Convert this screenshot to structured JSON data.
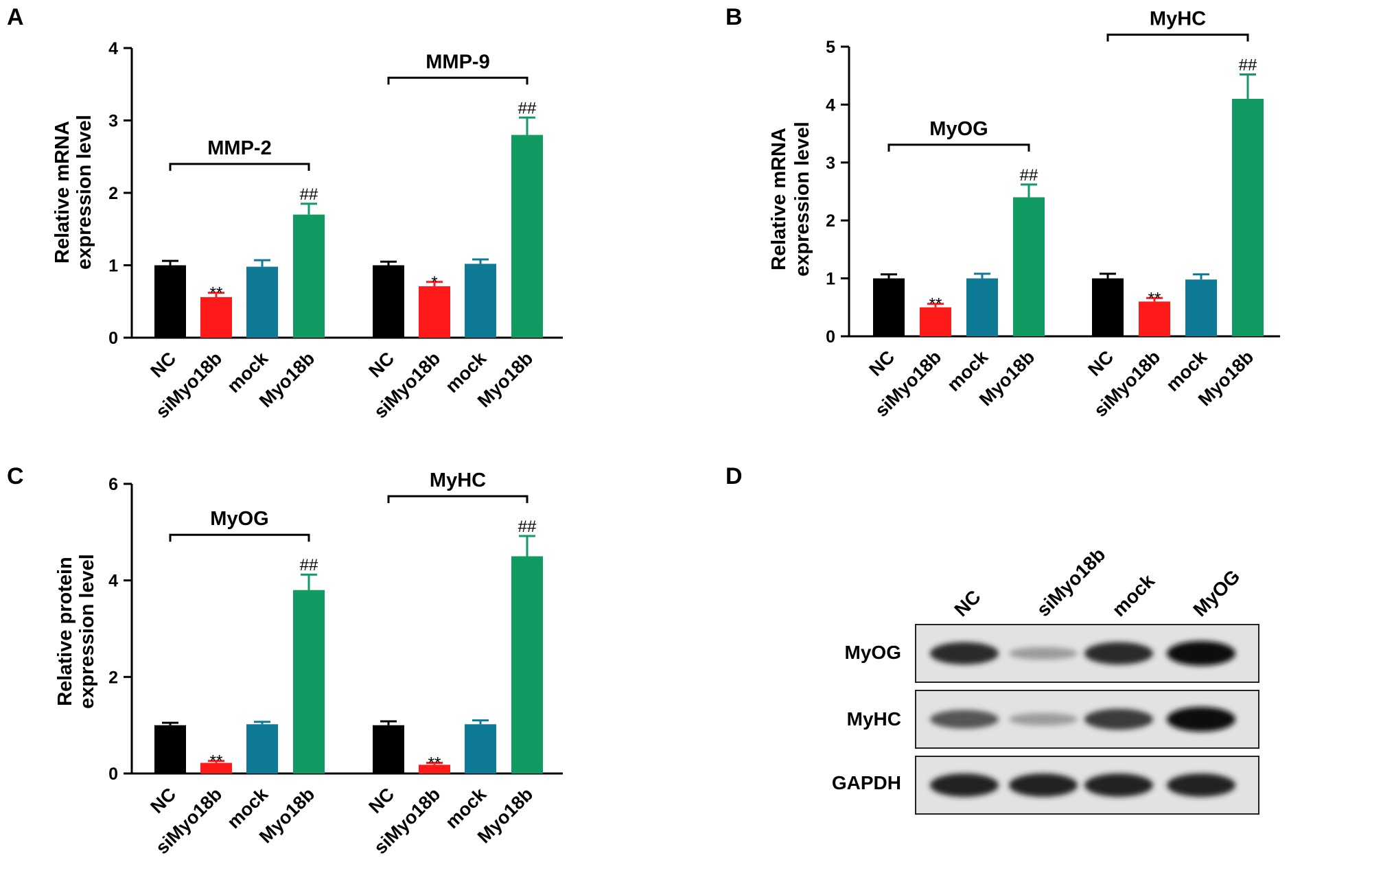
{
  "panels": [
    {
      "letter": "A"
    },
    {
      "letter": "B"
    },
    {
      "letter": "C"
    },
    {
      "letter": "D"
    }
  ],
  "colors": {
    "NC": "#000000",
    "siMyo18b": "#ff1a1a",
    "mock": "#0f7a96",
    "Myo18b": "#119b63"
  },
  "chart_data": [
    {
      "type": "bar",
      "panel": "A",
      "ylabel": [
        "Relative mRNA",
        "expression level"
      ],
      "ylim": [
        0,
        4
      ],
      "yticks": [
        0,
        1,
        2,
        3,
        4
      ],
      "categories": [
        "NC",
        "siMyo18b",
        "mock",
        "Myo18b"
      ],
      "groups": [
        {
          "name": "MMP-2",
          "values": [
            1.0,
            0.56,
            0.98,
            1.7
          ],
          "errors": [
            0.06,
            0.06,
            0.09,
            0.15
          ],
          "annotations": [
            "",
            "**",
            "",
            "##"
          ]
        },
        {
          "name": "MMP-9",
          "values": [
            1.0,
            0.71,
            1.02,
            2.8
          ],
          "errors": [
            0.05,
            0.06,
            0.06,
            0.24
          ],
          "annotations": [
            "",
            "*",
            "",
            "##"
          ]
        }
      ]
    },
    {
      "type": "bar",
      "panel": "B",
      "ylabel": [
        "Relative mRNA",
        "expression level"
      ],
      "ylim": [
        0,
        5
      ],
      "yticks": [
        0,
        1,
        2,
        3,
        4,
        5
      ],
      "categories": [
        "NC",
        "siMyo18b",
        "mock",
        "Myo18b"
      ],
      "groups": [
        {
          "name": "MyOG",
          "values": [
            1.0,
            0.5,
            1.0,
            2.4
          ],
          "errors": [
            0.07,
            0.06,
            0.08,
            0.22
          ],
          "annotations": [
            "",
            "**",
            "",
            "##"
          ]
        },
        {
          "name": "MyHC",
          "values": [
            1.0,
            0.6,
            0.98,
            4.1
          ],
          "errors": [
            0.08,
            0.06,
            0.09,
            0.42
          ],
          "annotations": [
            "",
            "**",
            "",
            "##"
          ]
        }
      ]
    },
    {
      "type": "bar",
      "panel": "C",
      "ylabel": [
        "Relative protein",
        "expression level"
      ],
      "ylim": [
        0,
        6
      ],
      "yticks": [
        0,
        2,
        4,
        6
      ],
      "categories": [
        "NC",
        "siMyo18b",
        "mock",
        "Myo18b"
      ],
      "groups": [
        {
          "name": "MyOG",
          "values": [
            1.0,
            0.22,
            1.02,
            3.8
          ],
          "errors": [
            0.05,
            0.04,
            0.05,
            0.32
          ],
          "annotations": [
            "",
            "**",
            "",
            "##"
          ]
        },
        {
          "name": "MyHC",
          "values": [
            1.0,
            0.18,
            1.02,
            4.5
          ],
          "errors": [
            0.08,
            0.04,
            0.08,
            0.42
          ],
          "annotations": [
            "",
            "**",
            "",
            "##"
          ]
        }
      ]
    }
  ],
  "western_blot": {
    "lanes": [
      "NC",
      "siMyo18b",
      "mock",
      "MyOG"
    ],
    "rows": [
      {
        "label": "MyOG",
        "intensities": [
          0.85,
          0.2,
          0.85,
          1.0
        ]
      },
      {
        "label": "MyHC",
        "intensities": [
          0.6,
          0.2,
          0.75,
          1.0
        ]
      },
      {
        "label": "GAPDH",
        "intensities": [
          0.9,
          0.9,
          0.9,
          0.9
        ]
      }
    ]
  }
}
